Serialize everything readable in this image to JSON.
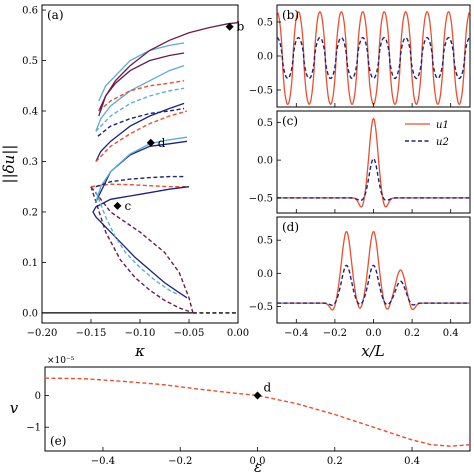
{
  "chart_data": [
    {
      "id": "a",
      "type": "line",
      "panel_label": "(a)",
      "xlabel": "κ",
      "ylabel": "||δu||",
      "xlim": [
        -0.2,
        0.0
      ],
      "ylim": [
        -0.02,
        0.61
      ],
      "xticks": [
        "−0.20",
        "−0.15",
        "−0.10",
        "−0.05",
        "0.00"
      ],
      "yticks": [
        "0.0",
        "0.1",
        "0.2",
        "0.3",
        "0.4",
        "0.5",
        "0.6"
      ],
      "colors": {
        "navy": "#1a237e",
        "lightblue": "#5aaed0",
        "red": "#e8502f",
        "purple": "#6a1b4d"
      },
      "points": [
        {
          "label": "b",
          "x": -0.0085,
          "y": 0.567
        },
        {
          "label": "c",
          "x": -0.123,
          "y": 0.212
        },
        {
          "label": "d",
          "x": -0.089,
          "y": 0.337
        }
      ],
      "series": [
        {
          "style": "solid",
          "color": "#000000",
          "x": [
            -0.2,
            -0.046
          ],
          "y": [
            0.0,
            0.0
          ]
        },
        {
          "style": "dashed",
          "color": "#000000",
          "x": [
            -0.046,
            0.0
          ],
          "y": [
            0.0,
            0.0
          ]
        },
        {
          "style": "dashed",
          "color": "#6a1b4d",
          "x": [
            -0.046,
            -0.05,
            -0.06,
            -0.075,
            -0.1,
            -0.13,
            -0.15
          ],
          "y": [
            0.0,
            0.03,
            0.08,
            0.12,
            0.16,
            0.2,
            0.25
          ]
        },
        {
          "style": "dashed",
          "color": "#6a1b4d",
          "x": [
            -0.15,
            -0.135,
            -0.12,
            -0.105,
            -0.09,
            -0.075,
            -0.06,
            -0.05
          ],
          "y": [
            0.25,
            0.16,
            0.105,
            0.07,
            0.045,
            0.025,
            0.01,
            0.003
          ]
        },
        {
          "style": "dashed",
          "color": "#e8502f",
          "x": [
            -0.15,
            -0.13,
            -0.11,
            -0.09,
            -0.07,
            -0.052
          ],
          "y": [
            0.25,
            0.255,
            0.254,
            0.252,
            0.25,
            0.25
          ]
        },
        {
          "style": "solid",
          "color": "#1a237e",
          "x": [
            -0.05,
            -0.07,
            -0.1,
            -0.13,
            -0.145,
            -0.148,
            -0.145,
            -0.135,
            -0.12,
            -0.105,
            -0.09,
            -0.075,
            -0.06,
            -0.052
          ],
          "y": [
            0.25,
            0.245,
            0.235,
            0.225,
            0.21,
            0.2,
            0.19,
            0.17,
            0.14,
            0.11,
            0.085,
            0.06,
            0.04,
            0.03
          ]
        },
        {
          "style": "solid",
          "color": "#1a237e",
          "x": [
            -0.145,
            -0.13,
            -0.11,
            -0.09,
            -0.07,
            -0.052
          ],
          "y": [
            0.22,
            0.28,
            0.313,
            0.33,
            0.335,
            0.34
          ]
        },
        {
          "style": "dashed",
          "color": "#5aaed0",
          "x": [
            -0.145,
            -0.135,
            -0.125,
            -0.115,
            -0.1,
            -0.085,
            -0.07,
            -0.06
          ],
          "y": [
            0.24,
            0.19,
            0.15,
            0.12,
            0.09,
            0.065,
            0.045,
            0.035
          ]
        },
        {
          "style": "solid",
          "color": "#5aaed0",
          "x": [
            -0.145,
            -0.14,
            -0.13,
            -0.11,
            -0.09,
            -0.07,
            -0.052
          ],
          "y": [
            0.22,
            0.25,
            0.28,
            0.315,
            0.335,
            0.343,
            0.348
          ]
        },
        {
          "style": "solid",
          "color": "#1a237e",
          "x": [
            -0.145,
            -0.14,
            -0.13,
            -0.11,
            -0.09,
            -0.07,
            -0.055
          ],
          "y": [
            0.3,
            0.32,
            0.34,
            0.37,
            0.39,
            0.405,
            0.415
          ]
        },
        {
          "style": "dashed",
          "color": "#e8502f",
          "x": [
            -0.145,
            -0.13,
            -0.11,
            -0.09,
            -0.07,
            -0.052
          ],
          "y": [
            0.3,
            0.33,
            0.355,
            0.375,
            0.39,
            0.4
          ]
        },
        {
          "style": "solid",
          "color": "#5aaed0",
          "x": [
            -0.145,
            -0.14,
            -0.13,
            -0.11,
            -0.09,
            -0.07,
            -0.055
          ],
          "y": [
            0.36,
            0.385,
            0.41,
            0.44,
            0.46,
            0.48,
            0.49
          ]
        },
        {
          "style": "dashed",
          "color": "#5aaed0",
          "x": [
            -0.145,
            -0.13,
            -0.11,
            -0.09,
            -0.07,
            -0.055
          ],
          "y": [
            0.36,
            0.39,
            0.415,
            0.43,
            0.44,
            0.445
          ]
        },
        {
          "style": "solid",
          "color": "#6a1b4d",
          "x": [
            -0.142,
            -0.135,
            -0.125,
            -0.11,
            -0.09,
            -0.07,
            -0.055
          ],
          "y": [
            0.4,
            0.43,
            0.455,
            0.48,
            0.5,
            0.51,
            0.515
          ]
        },
        {
          "style": "dashed",
          "color": "#e8502f",
          "x": [
            -0.142,
            -0.13,
            -0.11,
            -0.09,
            -0.07,
            -0.055
          ],
          "y": [
            0.4,
            0.42,
            0.44,
            0.45,
            0.455,
            0.46
          ]
        },
        {
          "style": "solid",
          "color": "#5aaed0",
          "x": [
            -0.142,
            -0.135,
            -0.125,
            -0.11,
            -0.09,
            -0.07,
            -0.055
          ],
          "y": [
            0.42,
            0.45,
            0.47,
            0.5,
            0.52,
            0.53,
            0.535
          ]
        },
        {
          "style": "solid",
          "color": "#6a1b4d",
          "x": [
            -0.142,
            -0.135,
            -0.125,
            -0.11,
            -0.09,
            -0.07,
            -0.05,
            -0.03,
            -0.01,
            0.0
          ],
          "y": [
            0.39,
            0.43,
            0.46,
            0.49,
            0.52,
            0.54,
            0.555,
            0.565,
            0.573,
            0.575
          ]
        },
        {
          "style": "dashed",
          "color": "#1a237e",
          "x": [
            -0.145,
            -0.13,
            -0.11,
            -0.09,
            -0.07,
            -0.055
          ],
          "y": [
            0.25,
            0.26,
            0.265,
            0.268,
            0.27,
            0.27
          ]
        },
        {
          "style": "dashed",
          "color": "#1a237e",
          "x": [
            -0.143,
            -0.13,
            -0.11,
            -0.09,
            -0.07,
            -0.055
          ],
          "y": [
            0.35,
            0.37,
            0.385,
            0.395,
            0.4,
            0.405
          ]
        }
      ]
    },
    {
      "id": "b",
      "type": "line",
      "panel_label": "(b)",
      "xlim": [
        -0.5,
        0.5
      ],
      "ylim": [
        -0.75,
        0.75
      ],
      "yticks": [
        "−0.5",
        "0.0",
        "0.5"
      ],
      "series": [
        {
          "name": "u1",
          "style": "solid",
          "color": "#e8502f",
          "amplitude": 0.68,
          "waves": 9
        },
        {
          "name": "u2",
          "style": "dashed",
          "color": "#1a237e",
          "amplitude": 0.3,
          "waves": 9
        }
      ]
    },
    {
      "id": "c",
      "type": "line",
      "panel_label": "(c)",
      "xlim": [
        -0.5,
        0.5
      ],
      "ylim": [
        -0.7,
        0.65
      ],
      "yticks": [
        "−0.5",
        "0.0",
        "0.5"
      ],
      "legend": {
        "placement": "top-right",
        "entries": [
          "u1",
          "u2"
        ]
      },
      "series": [
        {
          "name": "u1",
          "style": "solid",
          "color": "#e8502f",
          "baseline": -0.5,
          "peak": 0.55
        },
        {
          "name": "u2",
          "style": "dashed",
          "color": "#1a237e",
          "baseline": -0.5,
          "peak": 0.02
        }
      ]
    },
    {
      "id": "d",
      "type": "line",
      "panel_label": "(d)",
      "xlim": [
        -0.5,
        0.5
      ],
      "ylim": [
        -0.75,
        0.85
      ],
      "xlabel": "x/L",
      "xticks": [
        "−0.4",
        "−0.2",
        "0.0",
        "0.2",
        "0.4"
      ],
      "yticks": [
        "−0.5",
        "0.0",
        "0.5"
      ],
      "series": [
        {
          "name": "u1",
          "style": "solid",
          "color": "#e8502f",
          "baseline": -0.45,
          "peaks": [
            [
              -0.14,
              0.63
            ],
            [
              0.0,
              0.63
            ],
            [
              0.14,
              0.05
            ]
          ]
        },
        {
          "name": "u2",
          "style": "dashed",
          "color": "#1a237e",
          "baseline": -0.45,
          "peaks": [
            [
              -0.14,
              0.12
            ],
            [
              0.0,
              0.12
            ],
            [
              0.14,
              -0.12
            ]
          ]
        }
      ]
    },
    {
      "id": "e",
      "type": "line",
      "panel_label": "(e)",
      "xlabel": "ε",
      "ylabel": "v",
      "exponent_label": "×10⁻⁵",
      "xlim": [
        -0.55,
        0.55
      ],
      "ylim": [
        -1.75,
        0.9
      ],
      "xticks": [
        "−0.4",
        "−0.2",
        "0.0",
        "0.2",
        "0.4"
      ],
      "yticks": [
        "−1",
        "0"
      ],
      "points": [
        {
          "label": "d",
          "x": 0.0,
          "y": 0.0
        }
      ],
      "series": [
        {
          "style": "dashed",
          "color": "#e8502f",
          "x": [
            -0.55,
            -0.45,
            -0.35,
            -0.25,
            -0.15,
            -0.05,
            0.0,
            0.1,
            0.2,
            0.3,
            0.4,
            0.45,
            0.5,
            0.55
          ],
          "y": [
            0.55,
            0.53,
            0.45,
            0.35,
            0.2,
            0.06,
            0.0,
            -0.25,
            -0.6,
            -1.0,
            -1.4,
            -1.55,
            -1.6,
            -1.55
          ]
        }
      ]
    }
  ]
}
